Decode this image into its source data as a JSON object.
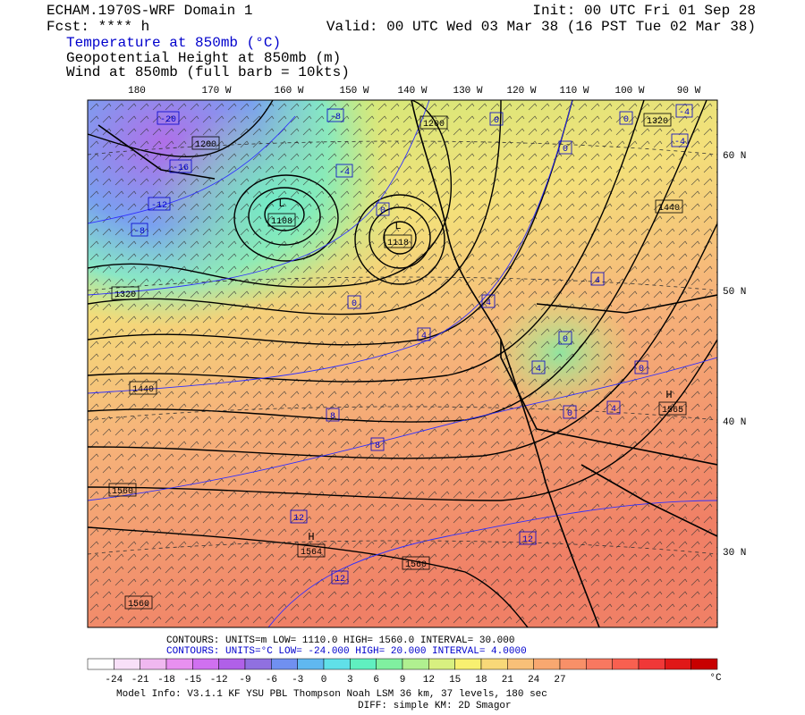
{
  "header": {
    "model": "ECHAM.1970S-WRF Domain 1",
    "init": "Init: 00 UTC Fri 01 Sep 28",
    "fcst": "Fcst: **** h",
    "valid": "Valid: 00 UTC Wed 03 Mar 38 (16 PST Tue 02 Mar 38)",
    "fields": [
      "Temperature at 850mb (°C)",
      "Geopotential Height at 850mb (m)",
      "Wind at 850mb (full barb = 10kts)"
    ]
  },
  "map": {
    "lon_labels": [
      "180",
      "170 W",
      "160 W",
      "150 W",
      "140 W",
      "130 W",
      "120 W",
      "110 W",
      "100 W",
      "90 W"
    ],
    "lat_labels": [
      "60 N",
      "50 N",
      "40 N",
      "30 N"
    ],
    "height_labels": [
      "1200",
      "1200",
      "1320",
      "1108",
      "1118",
      "1440",
      "1320",
      "1440",
      "1560",
      "1564",
      "1560",
      "1560",
      "1565"
    ],
    "pressure_centers": [
      "L",
      "L",
      "H",
      "H"
    ],
    "temperature_labels": [
      "-20",
      "-8",
      "-16",
      "-12",
      "-8",
      "-4",
      "0",
      "0",
      "0",
      "-4",
      "-4",
      "0",
      "4",
      "0",
      "4",
      "4",
      "0",
      "0",
      "0",
      "4",
      "8",
      "8",
      "12",
      "12",
      "12",
      "4"
    ]
  },
  "footer": {
    "height_contours": "CONTOURS:  UNITS=m   LOW=  1110.0     HIGH=  1560.0     INTERVAL=   30.000",
    "temperature_contours": "CONTOURS:  UNITS=°C  LOW= -24.000     HIGH=  20.000     INTERVAL=   4.0000",
    "colorbar_labels": [
      "-24",
      "-21",
      "-18",
      "-15",
      "-12",
      "-9",
      "-6",
      "-3",
      "0",
      "3",
      "6",
      "9",
      "12",
      "15",
      "18",
      "21",
      "24",
      "27"
    ],
    "colorbar_unit": "°C",
    "model_info": "Model Info: V3.1.1    KF      YSU PBL   Thompson     Noah LSM  36 km,   37 levels,  180 sec",
    "diff_info": "DIFF: simple KM: 2D Smagor"
  }
}
